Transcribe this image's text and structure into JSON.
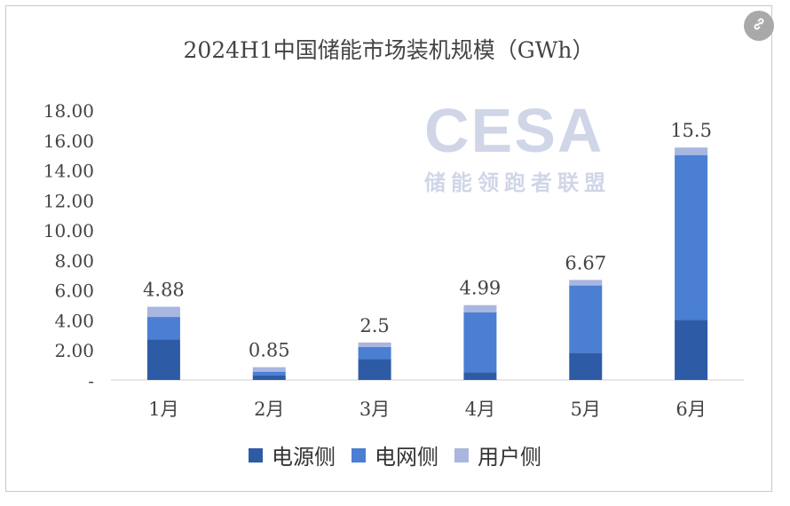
{
  "link_icon": "link-icon",
  "watermark": {
    "logo": "CESA",
    "subtitle": "储能领跑者联盟"
  },
  "colors": {
    "source_side": "#2e5ba6",
    "grid_side": "#4a7fd3",
    "user_side": "#a9b6e0"
  },
  "chart_data": {
    "type": "bar",
    "stacked": true,
    "title": "2024H1中国储能市场装机规模（GWh）",
    "categories": [
      "1月",
      "2月",
      "3月",
      "4月",
      "5月",
      "6月"
    ],
    "series": [
      {
        "name": "电源侧",
        "values": [
          2.7,
          0.3,
          1.4,
          0.5,
          1.8,
          4.0
        ]
      },
      {
        "name": "电网侧",
        "values": [
          1.5,
          0.25,
          0.8,
          4.0,
          4.5,
          11.0
        ]
      },
      {
        "name": "用户侧",
        "values": [
          0.68,
          0.3,
          0.3,
          0.49,
          0.37,
          0.5
        ]
      }
    ],
    "totals": [
      "4.88",
      "0.85",
      "2.5",
      "4.99",
      "6.67",
      "15.5"
    ],
    "yticks": [
      "-",
      "2.00",
      "4.00",
      "6.00",
      "8.00",
      "10.00",
      "12.00",
      "14.00",
      "16.00",
      "18.00"
    ],
    "ylim": [
      0,
      18
    ],
    "legend_position": "bottom",
    "grid": false
  }
}
